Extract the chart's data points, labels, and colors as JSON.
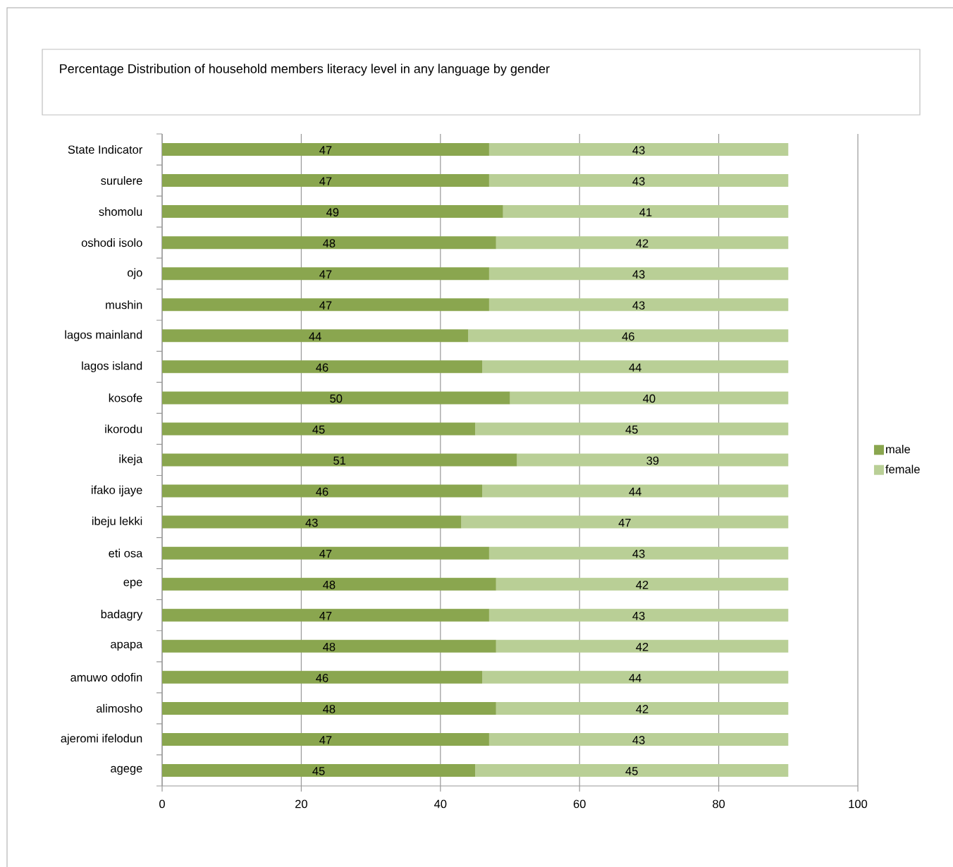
{
  "chart_data": {
    "type": "bar",
    "orientation": "horizontal",
    "stacked": true,
    "title": "Percentage Distribution of household members literacy level in any language by gender",
    "categories": [
      "State Indicator",
      "surulere",
      "shomolu",
      "oshodi isolo",
      "ojo",
      "mushin",
      "lagos mainland",
      "lagos island",
      "kosofe",
      "ikorodu",
      "ikeja",
      "ifako ijaye",
      "ibeju lekki",
      "eti osa",
      "epe",
      "badagry",
      "apapa",
      "amuwo odofin",
      "alimosho",
      "ajeromi ifelodun",
      "agege"
    ],
    "series": [
      {
        "name": "male",
        "color": "#8aa64f",
        "values": [
          47,
          47,
          49,
          48,
          47,
          47,
          44,
          46,
          50,
          45,
          51,
          46,
          43,
          47,
          48,
          47,
          48,
          46,
          48,
          47,
          45
        ]
      },
      {
        "name": "female",
        "color": "#b9cf96",
        "values": [
          43,
          43,
          41,
          42,
          43,
          43,
          46,
          44,
          40,
          45,
          39,
          44,
          47,
          43,
          42,
          43,
          42,
          44,
          42,
          43,
          45
        ]
      }
    ],
    "xlim": [
      0,
      100
    ],
    "xticks": [
      0,
      20,
      40,
      60,
      80,
      100
    ],
    "grid": "x",
    "legend": "right",
    "data_labels": true
  }
}
